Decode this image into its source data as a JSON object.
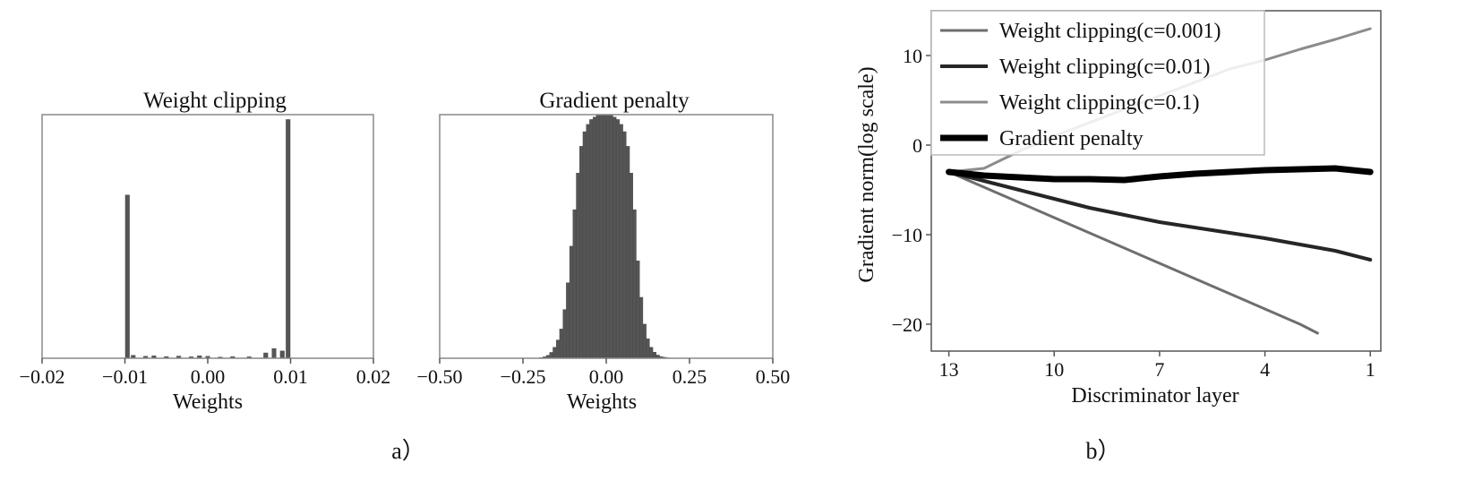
{
  "panels": {
    "a_label": "a）",
    "b_label": "b）"
  },
  "chart_data": [
    {
      "type": "bar",
      "title": "Weight clipping",
      "xlabel": "Weights",
      "ylabel": "",
      "xlim": [
        -0.02,
        0.02
      ],
      "xticks": [
        -0.02,
        -0.01,
        0.0,
        0.01,
        0.02
      ],
      "xtick_labels": [
        "−0.02",
        "−0.01",
        "0.00",
        "0.01",
        "0.02"
      ],
      "y_ticks_shown": false,
      "ylim": [
        0,
        1
      ],
      "bar_width": 0.0005,
      "bins": [
        {
          "x": -0.0097,
          "value": 0.67
        },
        {
          "x": -0.009,
          "value": 0.012
        },
        {
          "x": -0.0075,
          "value": 0.008
        },
        {
          "x": -0.0065,
          "value": 0.01
        },
        {
          "x": -0.005,
          "value": 0.007
        },
        {
          "x": -0.0035,
          "value": 0.009
        },
        {
          "x": -0.002,
          "value": 0.006
        },
        {
          "x": -0.001,
          "value": 0.01
        },
        {
          "x": 0.0,
          "value": 0.008
        },
        {
          "x": 0.0015,
          "value": 0.005
        },
        {
          "x": 0.003,
          "value": 0.007
        },
        {
          "x": 0.005,
          "value": 0.006
        },
        {
          "x": 0.007,
          "value": 0.022
        },
        {
          "x": 0.008,
          "value": 0.04
        },
        {
          "x": 0.009,
          "value": 0.03
        },
        {
          "x": 0.0097,
          "value": 0.98
        }
      ],
      "color": "#555555"
    },
    {
      "type": "bar",
      "title": "Gradient penalty",
      "xlabel": "Weights",
      "ylabel": "",
      "xlim": [
        -0.5,
        0.5
      ],
      "xticks": [
        -0.5,
        -0.25,
        0.0,
        0.25,
        0.5
      ],
      "xtick_labels": [
        "−0.50",
        "−0.25",
        "0.00",
        "0.25",
        "0.50"
      ],
      "y_ticks_shown": false,
      "ylim": [
        0,
        1
      ],
      "bar_width": 0.01,
      "bins_from": -0.2,
      "bins_to": 0.2,
      "bin_centers": [
        -0.195,
        -0.185,
        -0.175,
        -0.165,
        -0.155,
        -0.145,
        -0.135,
        -0.125,
        -0.115,
        -0.105,
        -0.095,
        -0.085,
        -0.075,
        -0.065,
        -0.055,
        -0.045,
        -0.035,
        -0.025,
        -0.015,
        -0.005,
        0.005,
        0.015,
        0.025,
        0.035,
        0.045,
        0.055,
        0.065,
        0.075,
        0.085,
        0.095,
        0.105,
        0.115,
        0.125,
        0.135,
        0.145,
        0.155,
        0.165,
        0.175,
        0.185,
        0.195
      ],
      "bin_values": [
        0.003,
        0.006,
        0.012,
        0.024,
        0.045,
        0.075,
        0.12,
        0.2,
        0.31,
        0.46,
        0.61,
        0.76,
        0.87,
        0.93,
        0.96,
        0.98,
        0.99,
        1.0,
        1.0,
        1.0,
        1.0,
        1.0,
        0.99,
        0.98,
        0.96,
        0.93,
        0.87,
        0.76,
        0.61,
        0.4,
        0.25,
        0.14,
        0.08,
        0.045,
        0.025,
        0.013,
        0.007,
        0.004,
        0.002,
        0.001
      ],
      "color": "#555555"
    },
    {
      "type": "line",
      "title": "",
      "xlabel": "Discriminator layer",
      "ylabel": "Gradient norm(log scale)",
      "x_reversed": true,
      "xlim": [
        13.5,
        0.7
      ],
      "ylim": [
        -23,
        15
      ],
      "xticks": [
        13,
        10,
        7,
        4,
        1
      ],
      "xtick_labels": [
        "13",
        "10",
        "7",
        "4",
        "1"
      ],
      "yticks": [
        10,
        0,
        -10,
        -20
      ],
      "ytick_labels": [
        "10",
        "0",
        "−10",
        "−20"
      ],
      "legend_position": "top-left",
      "series": [
        {
          "name": "Weight clipping(c=0.001)",
          "color": "#6e6e6e",
          "width": 3,
          "x": [
            13,
            12,
            11,
            10,
            9,
            8,
            7,
            6,
            5,
            4,
            3,
            2.5
          ],
          "y": [
            -3,
            -4.7,
            -6.4,
            -8.1,
            -9.8,
            -11.5,
            -13.2,
            -14.9,
            -16.6,
            -18.3,
            -20.0,
            -21.0
          ]
        },
        {
          "name": "Weight clipping(c=0.01)",
          "color": "#262626",
          "width": 4,
          "x": [
            13,
            12,
            11,
            10,
            9,
            8,
            7,
            6,
            5,
            4,
            3,
            2,
            1
          ],
          "y": [
            -3,
            -4.0,
            -5.0,
            -6.0,
            -7.0,
            -7.8,
            -8.6,
            -9.2,
            -9.8,
            -10.4,
            -11.1,
            -11.8,
            -12.8
          ]
        },
        {
          "name": "Weight clipping(c=0.1)",
          "color": "#8c8c8c",
          "width": 3,
          "x": [
            13,
            12,
            11,
            10,
            9,
            8,
            7,
            6,
            5,
            4,
            3,
            2,
            1
          ],
          "y": [
            -3,
            -2.6,
            -0.7,
            1.0,
            2.5,
            4.0,
            5.5,
            7.0,
            8.5,
            9.5,
            10.7,
            11.8,
            13.0
          ]
        },
        {
          "name": "Gradient penalty",
          "color": "#000000",
          "width": 7,
          "x": [
            13,
            12,
            11,
            10,
            9,
            8,
            7,
            6,
            5,
            4,
            3,
            2,
            1
          ],
          "y": [
            -3,
            -3.4,
            -3.6,
            -3.8,
            -3.8,
            -3.9,
            -3.5,
            -3.2,
            -3.0,
            -2.8,
            -2.7,
            -2.6,
            -3.0
          ]
        }
      ]
    }
  ]
}
